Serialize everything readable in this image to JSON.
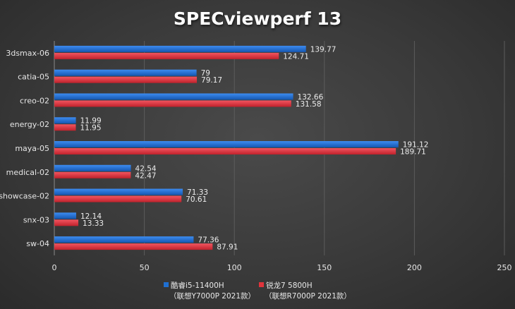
{
  "chart_data": {
    "type": "bar",
    "orientation": "horizontal",
    "title": "SPECviewperf 13",
    "categories": [
      "3dsmax-06",
      "catia-05",
      "creo-02",
      "energy-02",
      "maya-05",
      "medical-02",
      "showcase-02",
      "snx-03",
      "sw-04"
    ],
    "series": [
      {
        "name": "酷睿i5-11400H",
        "name_line2": "（联想Y7000P 2021款）",
        "color": "#1f6fd1",
        "values": [
          139.77,
          79,
          132.66,
          11.99,
          191.12,
          42.54,
          71.33,
          12.14,
          77.36
        ]
      },
      {
        "name": "锐龙7 5800H",
        "name_line2": "（联想R7000P 2021款）",
        "color": "#e0343c",
        "values": [
          124.71,
          79.17,
          131.58,
          11.95,
          189.71,
          42.47,
          70.61,
          13.33,
          87.91
        ]
      }
    ],
    "xlim": [
      0,
      250
    ],
    "xticks": [
      0,
      50,
      100,
      150,
      200,
      250
    ],
    "grid": true,
    "legend_position": "bottom",
    "data_labels": true
  }
}
